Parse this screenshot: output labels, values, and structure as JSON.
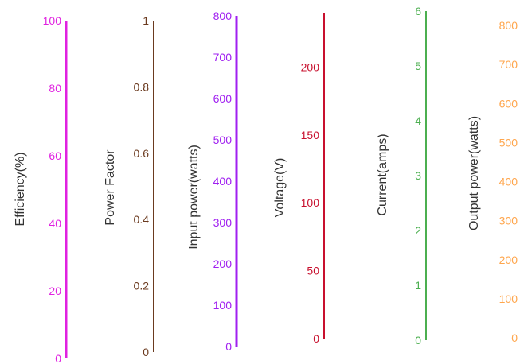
{
  "chart_data": {
    "type": "parallel-axes",
    "axes": [
      {
        "title": "Efficiency(%)",
        "color": "#e021e0",
        "range": [
          0,
          100
        ],
        "ticks": [
          "0",
          "20",
          "40",
          "60",
          "80",
          "100"
        ],
        "tick_values": [
          0,
          20,
          40,
          60,
          80,
          100
        ]
      },
      {
        "title": "Power Factor",
        "color": "#6b3a1f",
        "range": [
          0,
          1
        ],
        "ticks": [
          "0",
          "0.2",
          "0.4",
          "0.6",
          "0.8",
          "1"
        ],
        "tick_values": [
          0,
          0.2,
          0.4,
          0.6,
          0.8,
          1
        ]
      },
      {
        "title": "Input power(watts)",
        "color": "#a020f0",
        "range": [
          0,
          800
        ],
        "ticks": [
          "0",
          "100",
          "200",
          "300",
          "400",
          "500",
          "600",
          "700",
          "800"
        ],
        "tick_values": [
          0,
          100,
          200,
          300,
          400,
          500,
          600,
          700,
          800
        ]
      },
      {
        "title": "Voltage(V)",
        "color": "#c8102e",
        "range": [
          0,
          200
        ],
        "ticks": [
          "0",
          "50",
          "100",
          "150",
          "200"
        ],
        "tick_values": [
          0,
          50,
          100,
          150,
          200
        ]
      },
      {
        "title": "Current(amps)",
        "color": "#4caf50",
        "range": [
          0,
          6
        ],
        "ticks": [
          "0",
          "1",
          "2",
          "3",
          "4",
          "5",
          "6"
        ],
        "tick_values": [
          0,
          1,
          2,
          3,
          4,
          5,
          6
        ]
      },
      {
        "title": "Output power(watts)",
        "color": "#ffa64d",
        "range": [
          0,
          800
        ],
        "ticks": [
          "0",
          "100",
          "200",
          "300",
          "400",
          "500",
          "600",
          "700",
          "800"
        ],
        "tick_values": [
          0,
          100,
          200,
          300,
          400,
          500,
          600,
          700,
          800
        ]
      }
    ]
  }
}
